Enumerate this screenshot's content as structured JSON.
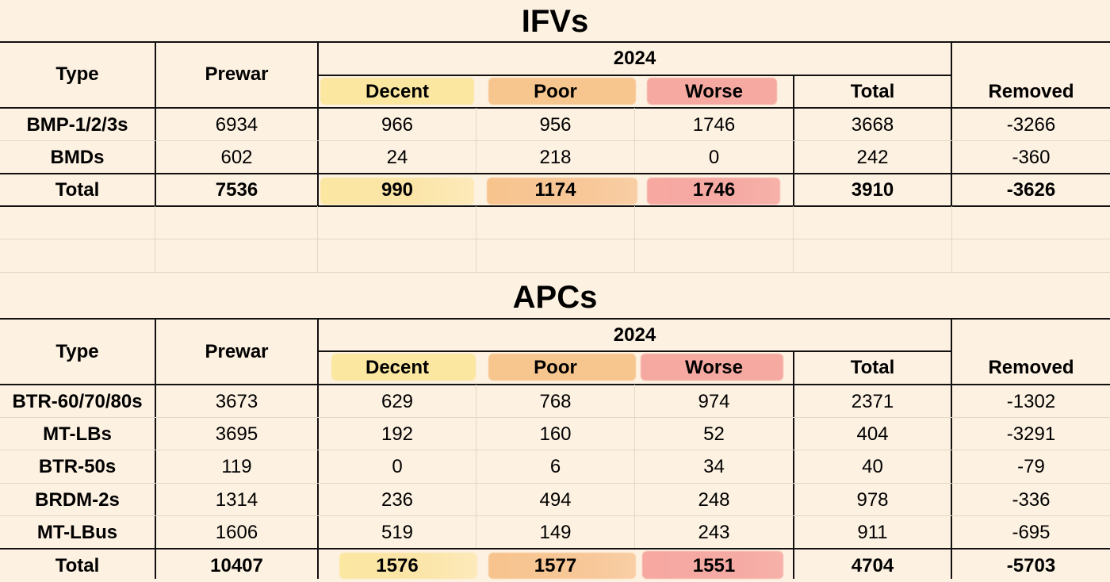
{
  "ifv": {
    "title": "IFVs",
    "headers": {
      "type": "Type",
      "prewar": "Prewar",
      "year": "2024",
      "decent": "Decent",
      "poor": "Poor",
      "worse": "Worse",
      "total": "Total",
      "removed": "Removed"
    },
    "rows": [
      {
        "type": "BMP-1/2/3s",
        "prewar": "6934",
        "decent": "966",
        "poor": "956",
        "worse": "1746",
        "total": "3668",
        "removed": "-3266"
      },
      {
        "type": "BMDs",
        "prewar": "602",
        "decent": "24",
        "poor": "218",
        "worse": "0",
        "total": "242",
        "removed": "-360"
      }
    ],
    "total_row": {
      "type": "Total",
      "prewar": "7536",
      "decent": "990",
      "poor": "1174",
      "worse": "1746",
      "total": "3910",
      "removed": "-3626"
    }
  },
  "apc": {
    "title": "APCs",
    "headers": {
      "type": "Type",
      "prewar": "Prewar",
      "year": "2024",
      "decent": "Decent",
      "poor": "Poor",
      "worse": "Worse",
      "total": "Total",
      "removed": "Removed"
    },
    "rows": [
      {
        "type": "BTR-60/70/80s",
        "prewar": "3673",
        "decent": "629",
        "poor": "768",
        "worse": "974",
        "total": "2371",
        "removed": "-1302"
      },
      {
        "type": "MT-LBs",
        "prewar": "3695",
        "decent": "192",
        "poor": "160",
        "worse": "52",
        "total": "404",
        "removed": "-3291"
      },
      {
        "type": "BTR-50s",
        "prewar": "119",
        "decent": "0",
        "poor": "6",
        "worse": "34",
        "total": "40",
        "removed": "-79"
      },
      {
        "type": "BRDM-2s",
        "prewar": "1314",
        "decent": "236",
        "poor": "494",
        "worse": "248",
        "total": "978",
        "removed": "-336"
      },
      {
        "type": "MT-LBus",
        "prewar": "1606",
        "decent": "519",
        "poor": "149",
        "worse": "243",
        "total": "911",
        "removed": "-695"
      }
    ],
    "total_row": {
      "type": "Total",
      "prewar": "10407",
      "decent": "1576",
      "poor": "1577",
      "worse": "1551",
      "total": "4704",
      "removed": "-5703"
    }
  },
  "colors": {
    "background": "#fdf1e1",
    "decent": "#fbe7a0",
    "poor": "#f7c58e",
    "worse": "#f6a9a0"
  }
}
